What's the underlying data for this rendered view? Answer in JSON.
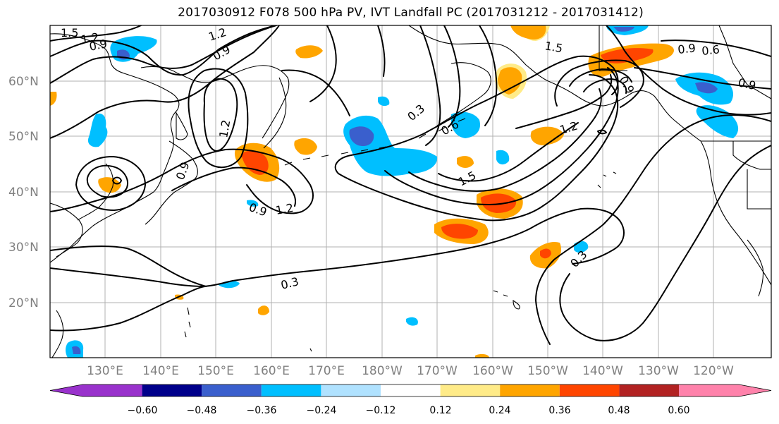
{
  "title": "2017030912 F078 500 hPa PV, IVT Landfall PC (2017031212 - 2017031412)",
  "lat_labels": [
    "60°N",
    "50°N",
    "40°N",
    "30°N",
    "20°N"
  ],
  "lon_labels": [
    "130°E",
    "140°E",
    "150°E",
    "160°E",
    "170°E",
    "180°W",
    "170°W",
    "160°W",
    "150°W",
    "140°W",
    "130°W",
    "120°W"
  ],
  "contour_labels": [
    "1.5",
    "1.2",
    "0.9",
    "1.2",
    "0.9",
    "1.2",
    "0.9",
    "0.9",
    "1.2",
    "0.3",
    "0.6",
    "1.5",
    "1.2",
    "1.5",
    "0.9",
    "0.6",
    "0.9",
    "0.3",
    "0.3",
    "0.9"
  ],
  "colorbar": {
    "ticks": [
      "−0.60",
      "−0.48",
      "−0.36",
      "−0.24",
      "−0.12",
      "0.12",
      "0.24",
      "0.36",
      "0.48",
      "0.60"
    ],
    "colors": [
      "#9932cc",
      "#00008b",
      "#3a5fcd",
      "#00bfff",
      "#b0e2ff",
      "#ffffff",
      "#ffeb88",
      "#ffa500",
      "#ff4500",
      "#b22222",
      "#ff82ab"
    ]
  },
  "shading_colors": {
    "neg_weak": "#00bfff",
    "neg_mid": "#3a5fcd",
    "pos_weak": "#ffa500",
    "pos_mid": "#ff4500",
    "pos_faint": "#ffeb88"
  }
}
